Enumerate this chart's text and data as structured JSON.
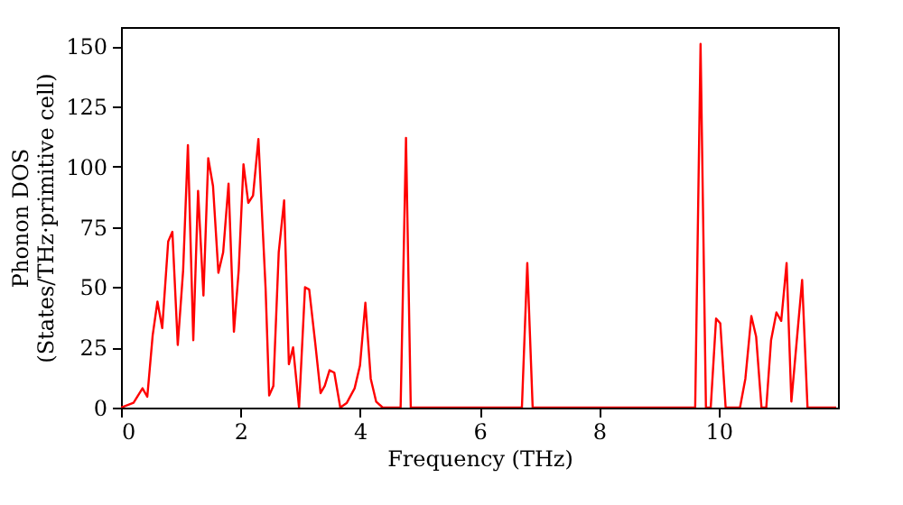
{
  "chart_data": {
    "type": "line",
    "xlabel": "Frequency (THz)",
    "ylabel": "Phonon DOS\n(States/THz·primitive cell)",
    "xlim": [
      0,
      12
    ],
    "xticks": [
      0,
      2,
      4,
      6,
      8,
      10
    ],
    "ylim": [
      0,
      158
    ],
    "yticks": [
      0,
      25,
      50,
      75,
      100,
      125,
      150
    ],
    "grid": false,
    "marker": "none",
    "line_style": "solid",
    "series": [
      {
        "color": "#ff0000",
        "x": [
          0,
          0.21,
          0.36,
          0.44,
          0.53,
          0.61,
          0.69,
          0.79,
          0.86,
          0.95,
          1.04,
          1.12,
          1.21,
          1.29,
          1.38,
          1.46,
          1.54,
          1.63,
          1.71,
          1.8,
          1.89,
          1.97,
          2.05,
          2.13,
          2.21,
          2.3,
          2.42,
          2.48,
          2.55,
          2.64,
          2.73,
          2.81,
          2.88,
          2.98,
          3.08,
          3.15,
          3.25,
          3.34,
          3.41,
          3.49,
          3.57,
          3.67,
          3.78,
          3.91,
          4.0,
          4.09,
          4.18,
          4.27,
          4.38,
          4.68,
          4.77,
          4.85,
          6.71,
          6.8,
          6.89,
          9.61,
          9.7,
          9.79,
          9.87,
          9.96,
          10.03,
          10.12,
          10.36,
          10.45,
          10.55,
          10.63,
          10.72,
          10.8,
          10.88,
          10.97,
          11.05,
          11.14,
          11.22,
          11.4,
          11.49,
          11.97
        ],
        "values": [
          0,
          2,
          8,
          4.5,
          30,
          44,
          33,
          69,
          73,
          26,
          57,
          109,
          28,
          90,
          46.5,
          103.5,
          92,
          56,
          64.5,
          93,
          31.5,
          57,
          101,
          85,
          88,
          111.5,
          49.5,
          5,
          9,
          64.5,
          86,
          18,
          25,
          0,
          50,
          49,
          27,
          6,
          9,
          15.5,
          14.5,
          0,
          2,
          8,
          17.5,
          43.5,
          12,
          2.5,
          0,
          0,
          112,
          0,
          0,
          60,
          0,
          0,
          151,
          0,
          0,
          37,
          35,
          0,
          0,
          12,
          38,
          29.5,
          0,
          0,
          28,
          39.5,
          36,
          60,
          2.5,
          53,
          0,
          0
        ]
      }
    ]
  }
}
